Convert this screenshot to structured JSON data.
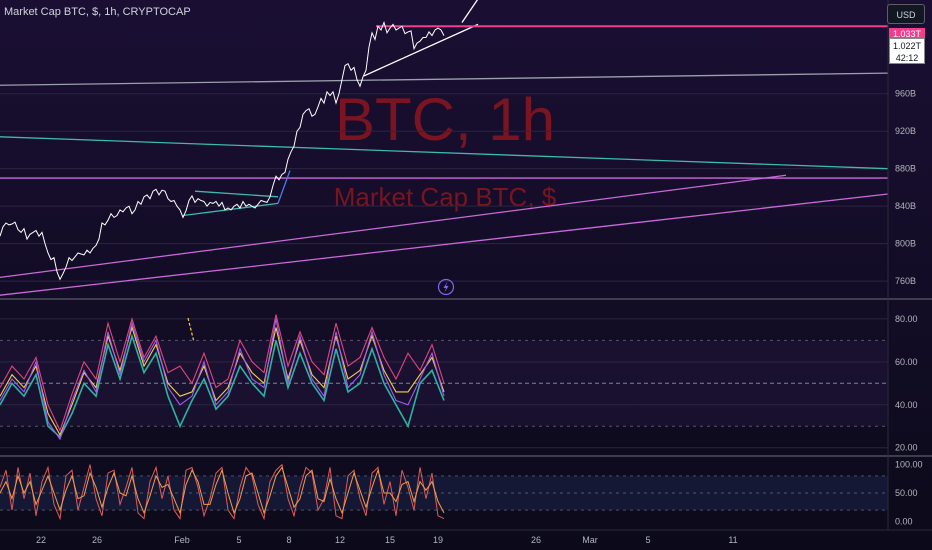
{
  "header": {
    "symbol_title": "Market Cap BTC, $, 1h, CRYPTOCAP",
    "currency_button": "USD"
  },
  "watermark": {
    "main": "BTC, 1h",
    "sub": "Market Cap BTC, $"
  },
  "price_tags": {
    "pink": "1.033T",
    "white_value": "1.022T",
    "countdown": "42:12"
  },
  "colors": {
    "background": "#0c0a1a",
    "price_line": "#ffffff",
    "magenta_lines": "#c86ad8",
    "teal_line": "#3fb8af",
    "resistance": "#f23d8c",
    "rsi_fast": "#e0457b",
    "rsi_slow": "#2bb3a3",
    "rsi_mid": "#f5d04a",
    "rsi_purple": "#9d5cf0",
    "stoch_k": "#e05a5a",
    "stoch_d": "#f39c4a"
  },
  "icons": {
    "lightning": "lightning-icon"
  },
  "chart_data": [
    {
      "type": "line",
      "title": "Market Cap BTC, $, 1h, CRYPTOCAP",
      "x_tick_labels": [
        "22",
        "26",
        "Feb",
        "5",
        "8",
        "12",
        "15",
        "19",
        "26",
        "Mar",
        "5",
        "11"
      ],
      "y_tick_labels": [
        "760B",
        "800B",
        "840B",
        "880B",
        "920B",
        "960B"
      ],
      "ylim": [
        742,
        1060
      ],
      "price_series": {
        "name": "Market Cap BTC",
        "points": [
          [
            0,
            808
          ],
          [
            3,
            818
          ],
          [
            6,
            822
          ],
          [
            9,
            820
          ],
          [
            12,
            821
          ],
          [
            15,
            823
          ],
          [
            18,
            815
          ],
          [
            21,
            812
          ],
          [
            24,
            816
          ],
          [
            27,
            805
          ],
          [
            30,
            810
          ],
          [
            33,
            812
          ],
          [
            36,
            814
          ],
          [
            39,
            808
          ],
          [
            42,
            812
          ],
          [
            45,
            800
          ],
          [
            48,
            790
          ],
          [
            51,
            783
          ],
          [
            54,
            785
          ],
          [
            57,
            770
          ],
          [
            60,
            762
          ],
          [
            63,
            768
          ],
          [
            66,
            775
          ],
          [
            69,
            785
          ],
          [
            72,
            782
          ],
          [
            75,
            786
          ],
          [
            78,
            790
          ],
          [
            81,
            789
          ],
          [
            84,
            788
          ],
          [
            87,
            793
          ],
          [
            90,
            790
          ],
          [
            93,
            795
          ],
          [
            96,
            798
          ],
          [
            99,
            805
          ],
          [
            102,
            822
          ],
          [
            105,
            820
          ],
          [
            108,
            825
          ],
          [
            111,
            832
          ],
          [
            114,
            828
          ],
          [
            117,
            830
          ],
          [
            120,
            836
          ],
          [
            123,
            834
          ],
          [
            126,
            838
          ],
          [
            129,
            840
          ],
          [
            132,
            832
          ],
          [
            135,
            836
          ],
          [
            138,
            845
          ],
          [
            141,
            842
          ],
          [
            144,
            850
          ],
          [
            147,
            852
          ],
          [
            150,
            848
          ],
          [
            153,
            856
          ],
          [
            156,
            858
          ],
          [
            159,
            852
          ],
          [
            162,
            857
          ],
          [
            165,
            856
          ],
          [
            168,
            848
          ],
          [
            171,
            845
          ],
          [
            174,
            846
          ],
          [
            177,
            840
          ],
          [
            180,
            836
          ],
          [
            183,
            828
          ],
          [
            186,
            835
          ],
          [
            189,
            846
          ],
          [
            192,
            851
          ],
          [
            195,
            844
          ],
          [
            198,
            848
          ],
          [
            201,
            846
          ],
          [
            204,
            845
          ],
          [
            207,
            840
          ],
          [
            210,
            844
          ],
          [
            213,
            843
          ],
          [
            216,
            845
          ],
          [
            219,
            840
          ],
          [
            222,
            844
          ],
          [
            225,
            836
          ],
          [
            228,
            838
          ],
          [
            231,
            836
          ],
          [
            234,
            840
          ],
          [
            237,
            842
          ],
          [
            240,
            838
          ],
          [
            243,
            845
          ],
          [
            246,
            840
          ],
          [
            249,
            842
          ],
          [
            252,
            840
          ],
          [
            255,
            838
          ],
          [
            258,
            842
          ],
          [
            261,
            846
          ],
          [
            264,
            845
          ],
          [
            267,
            844
          ],
          [
            270,
            850
          ],
          [
            273,
            862
          ],
          [
            276,
            872
          ],
          [
            279,
            868
          ],
          [
            282,
            874
          ],
          [
            285,
            876
          ],
          [
            288,
            890
          ],
          [
            291,
            898
          ],
          [
            294,
            904
          ],
          [
            297,
            920
          ],
          [
            300,
            924
          ],
          [
            303,
            938
          ],
          [
            306,
            942
          ],
          [
            309,
            944
          ],
          [
            312,
            936
          ],
          [
            315,
            938
          ],
          [
            318,
            946
          ],
          [
            321,
            955
          ],
          [
            324,
            950
          ],
          [
            327,
            962
          ],
          [
            330,
            958
          ],
          [
            333,
            962
          ],
          [
            336,
            950
          ],
          [
            339,
            960
          ],
          [
            342,
            975
          ],
          [
            345,
            990
          ],
          [
            348,
            992
          ],
          [
            351,
            985
          ],
          [
            354,
            988
          ],
          [
            357,
            975
          ],
          [
            360,
            968
          ],
          [
            363,
            978
          ],
          [
            366,
            985
          ],
          [
            369,
            1010
          ],
          [
            372,
            1025
          ],
          [
            375,
            1018
          ],
          [
            378,
            1032
          ],
          [
            381,
            1028
          ],
          [
            384,
            1036
          ],
          [
            387,
            1025
          ],
          [
            390,
            1030
          ],
          [
            393,
            1034
          ],
          [
            396,
            1028
          ],
          [
            399,
            1030
          ],
          [
            402,
            1032
          ],
          [
            405,
            1024
          ],
          [
            408,
            1026
          ],
          [
            411,
            1027
          ],
          [
            414,
            1008
          ],
          [
            417,
            1014
          ],
          [
            420,
            1016
          ],
          [
            423,
            1020
          ],
          [
            426,
            1020
          ],
          [
            429,
            1026
          ],
          [
            432,
            1022
          ],
          [
            435,
            1028
          ],
          [
            438,
            1030
          ],
          [
            441,
            1028
          ],
          [
            444,
            1022
          ]
        ]
      },
      "trend_lines": [
        {
          "name": "white-trendline",
          "color": "#ffffff",
          "from": [
            364,
            979
          ],
          "to": [
            478,
            1034
          ]
        },
        {
          "name": "white-steep",
          "color": "#ffffff",
          "from": [
            462,
            1036
          ],
          "to": [
            490,
            1080
          ]
        },
        {
          "name": "resistance",
          "color": "#f23d8c",
          "from": [
            376,
            1032
          ],
          "to": [
            888,
            1032
          ]
        },
        {
          "name": "gray-line",
          "color": "#9aa0ad",
          "from": [
            0,
            969
          ],
          "to": [
            888,
            982
          ]
        },
        {
          "name": "teal-line",
          "color": "#3fb8af",
          "from": [
            0,
            914
          ],
          "to": [
            888,
            880
          ]
        },
        {
          "name": "purple-horizontal",
          "color": "#c86ad8",
          "from": [
            0,
            870
          ],
          "to": [
            888,
            870
          ]
        },
        {
          "name": "purple-rising",
          "color": "#c86ad8",
          "from": [
            0,
            764
          ],
          "to": [
            786,
            873
          ]
        },
        {
          "name": "purple-lower",
          "color": "#c86ad8",
          "from": [
            0,
            745
          ],
          "to": [
            888,
            853
          ]
        },
        {
          "name": "teal-flag",
          "color": "#3fb8af",
          "from": [
            183,
            830
          ],
          "to": [
            278,
            843
          ]
        },
        {
          "name": "teal-flag-top",
          "color": "#3fb8af",
          "from": [
            195,
            856
          ],
          "to": [
            278,
            850
          ]
        },
        {
          "name": "blue-breakout",
          "color": "#4a7cf0",
          "from": [
            278,
            843
          ],
          "to": [
            290,
            878
          ]
        }
      ]
    },
    {
      "type": "line",
      "name": "RSI panel",
      "y_tick_labels": [
        "20.00",
        "40.00",
        "60.00",
        "80.00"
      ],
      "ylim": [
        18,
        86
      ],
      "x": [
        0,
        12,
        24,
        36,
        48,
        60,
        72,
        84,
        96,
        108,
        120,
        132,
        144,
        156,
        168,
        180,
        192,
        204,
        216,
        228,
        240,
        252,
        264,
        276,
        288,
        300,
        312,
        324,
        336,
        348,
        360,
        372,
        384,
        396,
        408,
        420,
        432,
        444
      ],
      "series": [
        {
          "values": [
            48,
            58,
            52,
            62,
            40,
            28,
            45,
            60,
            52,
            78,
            60,
            80,
            62,
            72,
            55,
            58,
            50,
            64,
            48,
            52,
            70,
            60,
            55,
            82,
            58,
            74,
            60,
            54,
            78,
            58,
            62,
            76,
            62,
            52,
            64,
            56,
            68,
            50
          ]
        },
        {
          "values": [
            40,
            50,
            44,
            54,
            30,
            25,
            36,
            50,
            44,
            68,
            52,
            72,
            55,
            64,
            44,
            30,
            42,
            52,
            38,
            44,
            58,
            50,
            44,
            70,
            48,
            64,
            50,
            42,
            66,
            46,
            50,
            66,
            50,
            40,
            30,
            50,
            56,
            42
          ]
        },
        {
          "values": [
            44,
            54,
            48,
            58,
            36,
            26,
            40,
            55,
            48,
            72,
            56,
            76,
            58,
            68,
            50,
            44,
            46,
            58,
            42,
            48,
            64,
            55,
            50,
            76,
            52,
            70,
            54,
            48,
            72,
            52,
            56,
            72,
            56,
            46,
            46,
            54,
            62,
            46
          ]
        },
        {
          "values": [
            42,
            52,
            46,
            60,
            32,
            24,
            42,
            56,
            46,
            74,
            54,
            78,
            60,
            70,
            48,
            40,
            44,
            60,
            40,
            46,
            66,
            52,
            48,
            80,
            50,
            72,
            52,
            44,
            74,
            48,
            54,
            74,
            54,
            42,
            40,
            52,
            64,
            44
          ]
        }
      ]
    },
    {
      "type": "line",
      "name": "Stochastic RSI panel",
      "y_tick_labels": [
        "0.00",
        "50.00",
        "100.00"
      ],
      "ylim": [
        -8,
        108
      ],
      "x": [
        0,
        6,
        12,
        18,
        24,
        30,
        36,
        42,
        48,
        54,
        60,
        66,
        72,
        78,
        84,
        90,
        96,
        102,
        108,
        114,
        120,
        126,
        132,
        138,
        144,
        150,
        156,
        162,
        168,
        174,
        180,
        186,
        192,
        198,
        204,
        210,
        216,
        222,
        228,
        234,
        240,
        246,
        252,
        258,
        264,
        270,
        276,
        282,
        288,
        294,
        300,
        306,
        312,
        318,
        324,
        330,
        336,
        342,
        348,
        354,
        360,
        366,
        372,
        378,
        384,
        390,
        396,
        402,
        408,
        414,
        420,
        426,
        432,
        438,
        444
      ],
      "series": [
        {
          "values": [
            60,
            90,
            20,
            95,
            40,
            85,
            10,
            70,
            95,
            30,
            5,
            80,
            90,
            20,
            60,
            100,
            40,
            10,
            85,
            90,
            30,
            60,
            95,
            15,
            5,
            70,
            95,
            40,
            80,
            20,
            5,
            90,
            95,
            60,
            10,
            40,
            85,
            95,
            20,
            5,
            60,
            95,
            80,
            30,
            5,
            70,
            90,
            100,
            40,
            10,
            60,
            95,
            85,
            20,
            40,
            95,
            10,
            5,
            80,
            90,
            40,
            10,
            85,
            95,
            30,
            70,
            10,
            90,
            60,
            20,
            95,
            40,
            85,
            10,
            5
          ]
        },
        {
          "values": [
            50,
            70,
            40,
            80,
            50,
            70,
            30,
            55,
            80,
            50,
            20,
            55,
            80,
            40,
            45,
            85,
            60,
            25,
            60,
            85,
            50,
            45,
            80,
            40,
            15,
            45,
            80,
            60,
            65,
            40,
            15,
            65,
            90,
            70,
            30,
            30,
            65,
            90,
            50,
            15,
            40,
            80,
            85,
            50,
            15,
            45,
            80,
            95,
            60,
            25,
            40,
            80,
            90,
            40,
            35,
            75,
            40,
            15,
            50,
            85,
            55,
            25,
            60,
            90,
            50,
            50,
            35,
            65,
            70,
            35,
            70,
            55,
            70,
            35,
            15
          ]
        }
      ]
    }
  ]
}
